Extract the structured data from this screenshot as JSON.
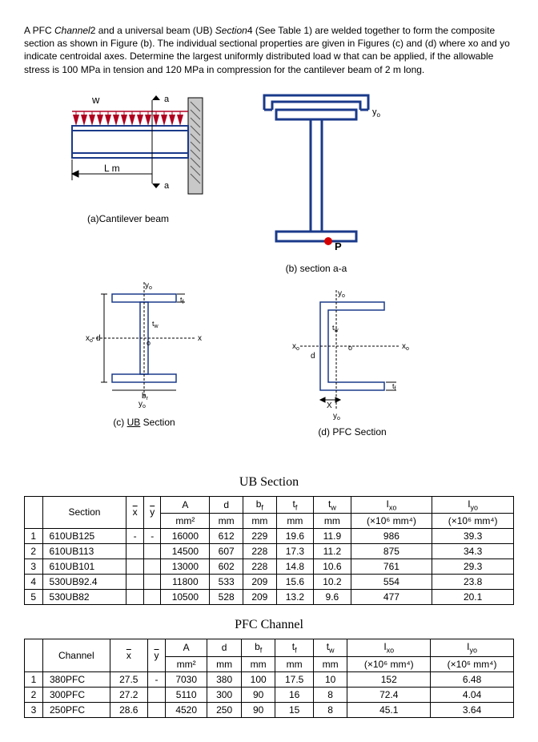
{
  "intro": {
    "t1": "A PFC ",
    "channel": "Channel",
    "t2": "2 and a universal beam (UB) ",
    "section": "Section",
    "t3": "4 (See Table 1) are welded together to form the composite section as shown in Figure (b). The individual sectional properties are given in Figures (c) and (d) where xo and yo indicate centroidal axes. Determine the largest uniformly distributed load w that can be applied, if the allowable stress is 100 MPa in tension and 120 MPa in compression for the cantilever beam of 2 m long."
  },
  "figLabels": {
    "a": "(a)Cantilever beam",
    "b": "(b) section a-a",
    "c": "(c) UB Section",
    "d": "(d) PFC Section"
  },
  "figA": {
    "w": "w",
    "a1": "a",
    "a2": "a",
    "L": "L m"
  },
  "figB": {
    "P": "P",
    "yo": "y"
  },
  "figC": {
    "yo1": "y",
    "yo2": "y",
    "xo": "x",
    "d": "d",
    "b": "b",
    "tf": "t",
    "tw": "t",
    "o": "o"
  },
  "figD": {
    "yo1": "y",
    "yo2": "y",
    "xo1": "x",
    "xo2": "x",
    "tw": "t",
    "tf": "t",
    "d": "d",
    "X": "X",
    "o": "o"
  },
  "ubTitle": "UB Section",
  "pfcTitle": "PFC Channel",
  "headers": {
    "section": "Section",
    "channel": "Channel",
    "A": "A",
    "A_u": "mm²",
    "d": "d",
    "d_u": "mm",
    "bf": "b",
    "bf_u": "mm",
    "tf": "t",
    "tf_u": "mm",
    "tw": "t",
    "tw_u": "mm",
    "Ixo": "I",
    "Ixo_u": "(×10⁶ mm⁴)",
    "Iyo": "I",
    "Iyo_u": "(×10⁶ mm⁴)"
  },
  "ub": [
    {
      "n": "1",
      "section": "610UB125",
      "xb": "-",
      "yb": "-",
      "A": "16000",
      "d": "612",
      "bf": "229",
      "tf": "19.6",
      "tw": "11.9",
      "Ixo": "986",
      "Iyo": "39.3"
    },
    {
      "n": "2",
      "section": "610UB113",
      "xb": "",
      "yb": "",
      "A": "14500",
      "d": "607",
      "bf": "228",
      "tf": "17.3",
      "tw": "11.2",
      "Ixo": "875",
      "Iyo": "34.3"
    },
    {
      "n": "3",
      "section": "610UB101",
      "xb": "",
      "yb": "",
      "A": "13000",
      "d": "602",
      "bf": "228",
      "tf": "14.8",
      "tw": "10.6",
      "Ixo": "761",
      "Iyo": "29.3"
    },
    {
      "n": "4",
      "section": "530UB92.4",
      "xb": "",
      "yb": "",
      "A": "11800",
      "d": "533",
      "bf": "209",
      "tf": "15.6",
      "tw": "10.2",
      "Ixo": "554",
      "Iyo": "23.8"
    },
    {
      "n": "5",
      "section": "530UB82",
      "xb": "",
      "yb": "",
      "A": "10500",
      "d": "528",
      "bf": "209",
      "tf": "13.2",
      "tw": "9.6",
      "Ixo": "477",
      "Iyo": "20.1"
    }
  ],
  "pfc": [
    {
      "n": "1",
      "section": "380PFC",
      "xb": "27.5",
      "yb": "-",
      "A": "7030",
      "d": "380",
      "bf": "100",
      "tf": "17.5",
      "tw": "10",
      "Ixo": "152",
      "Iyo": "6.48"
    },
    {
      "n": "2",
      "section": "300PFC",
      "xb": "27.2",
      "yb": "",
      "A": "5110",
      "d": "300",
      "bf": "90",
      "tf": "16",
      "tw": "8",
      "Ixo": "72.4",
      "Iyo": "4.04"
    },
    {
      "n": "3",
      "section": "250PFC",
      "xb": "28.6",
      "yb": "",
      "A": "4520",
      "d": "250",
      "bf": "90",
      "tf": "15",
      "tw": "8",
      "Ixo": "45.1",
      "Iyo": "3.64"
    }
  ]
}
